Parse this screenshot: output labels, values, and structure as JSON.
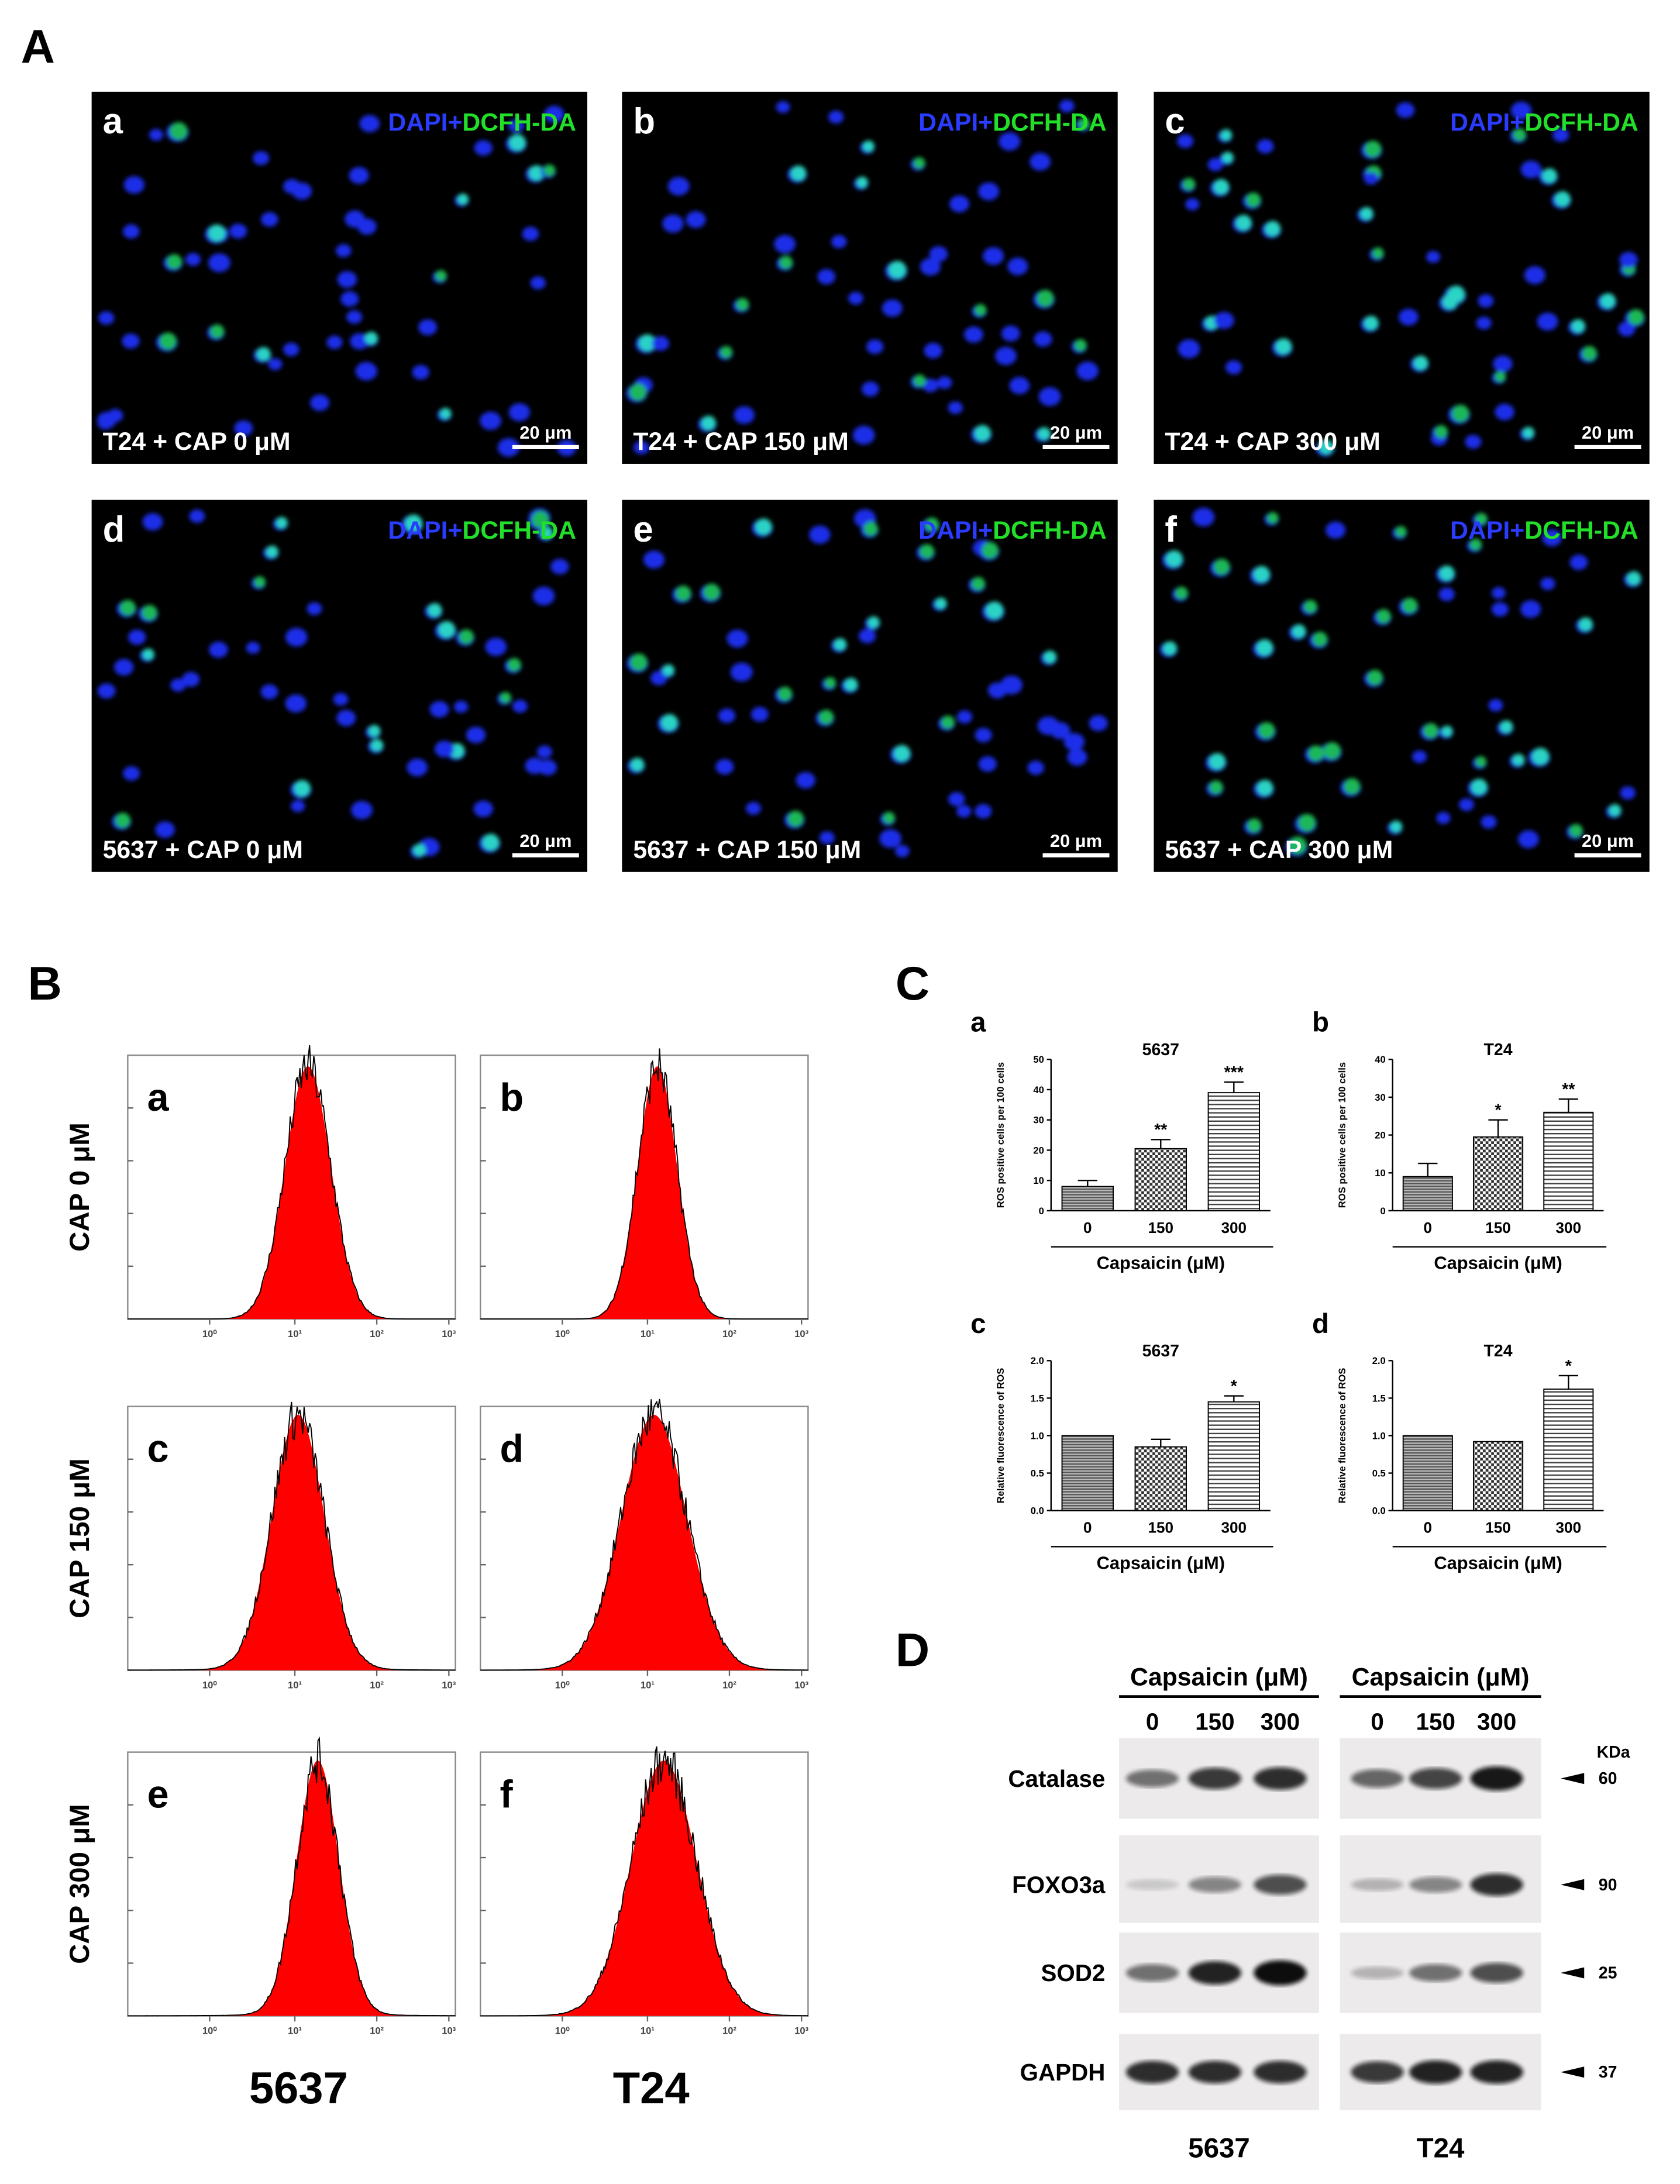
{
  "panel_labels": [
    "A",
    "B",
    "C",
    "D"
  ],
  "microscopy": {
    "stain_blue": "DAPI+",
    "stain_green": "DCFH-DA",
    "scale_bar": "20 μm",
    "images": [
      {
        "letter": "a",
        "caption": "T24 + CAP 0 μM"
      },
      {
        "letter": "b",
        "caption": "T24 + CAP 150 μM"
      },
      {
        "letter": "c",
        "caption": "T24 + CAP 300 μM"
      },
      {
        "letter": "d",
        "caption": "5637 + CAP 0 μM"
      },
      {
        "letter": "e",
        "caption": "5637 + CAP 150 μM"
      },
      {
        "letter": "f",
        "caption": "5637 + CAP 300 μM"
      }
    ]
  },
  "flow": {
    "row_labels": [
      "CAP 0 μM",
      "CAP 150 μM",
      "CAP 300 μM"
    ],
    "column_labels": [
      "5637",
      "T24"
    ],
    "letters": [
      "a",
      "b",
      "c",
      "d",
      "e",
      "f"
    ],
    "x_tick_labels": [
      "10⁰",
      "10¹",
      "10²",
      "10³"
    ]
  },
  "chart_data": [
    {
      "type": "bar",
      "panel_label": "a",
      "title": "5637",
      "y_label": "ROS positive cells per 100 cells",
      "x_label": "Capsaicin (μM)",
      "categories": [
        "0",
        "150",
        "300"
      ],
      "values": [
        8,
        20.5,
        39
      ],
      "errors": [
        2,
        3,
        3.5
      ],
      "annotations": [
        null,
        "**",
        "***"
      ],
      "ylim": [
        0,
        50
      ],
      "yticks": [
        0,
        10,
        20,
        30,
        40,
        50
      ]
    },
    {
      "type": "bar",
      "panel_label": "b",
      "title": "T24",
      "y_label": "ROS positive cells per 100 cells",
      "x_label": "Capsaicin (μM)",
      "categories": [
        "0",
        "150",
        "300"
      ],
      "values": [
        9,
        19.5,
        26
      ],
      "errors": [
        3.5,
        4.5,
        3.5
      ],
      "annotations": [
        null,
        "*",
        "**"
      ],
      "ylim": [
        0,
        40
      ],
      "yticks": [
        0,
        10,
        20,
        30,
        40
      ]
    },
    {
      "type": "bar",
      "panel_label": "c",
      "title": "5637",
      "y_label": "Relative fluorescence of ROS",
      "x_label": "Capsaicin (μM)",
      "categories": [
        "0",
        "150",
        "300"
      ],
      "values": [
        1.0,
        0.85,
        1.45
      ],
      "errors": [
        null,
        0.1,
        0.08
      ],
      "annotations": [
        null,
        null,
        "*"
      ],
      "ylim": [
        0,
        2
      ],
      "yticks": [
        {
          "value": 0,
          "label": "0.0"
        },
        0.5,
        {
          "value": 1,
          "label": "1.0"
        },
        1.5,
        {
          "value": 2,
          "label": "2.0"
        }
      ]
    },
    {
      "type": "bar",
      "panel_label": "d",
      "title": "T24",
      "y_label": "Relative fluorescence of ROS",
      "x_label": "Capsaicin (μM)",
      "categories": [
        "0",
        "150",
        "300"
      ],
      "values": [
        1.0,
        0.92,
        1.62
      ],
      "errors": [
        null,
        null,
        0.18
      ],
      "annotations": [
        null,
        null,
        "*"
      ],
      "ylim": [
        0,
        2
      ],
      "yticks": [
        {
          "value": 0,
          "label": "0.0"
        },
        0.5,
        {
          "value": 1,
          "label": "1.0"
        },
        1.5,
        {
          "value": 2,
          "label": "2.0"
        }
      ]
    }
  ],
  "western": {
    "header": "Capsaicin (μM)",
    "concentrations": [
      "0",
      "150",
      "300"
    ],
    "proteins": [
      "Catalase",
      "FOXO3a",
      "SOD2",
      "GAPDH"
    ],
    "kda_header": "KDa",
    "kda": [
      "60",
      "90",
      "25",
      "37"
    ],
    "cell_lines": [
      "5637",
      "T24"
    ]
  }
}
